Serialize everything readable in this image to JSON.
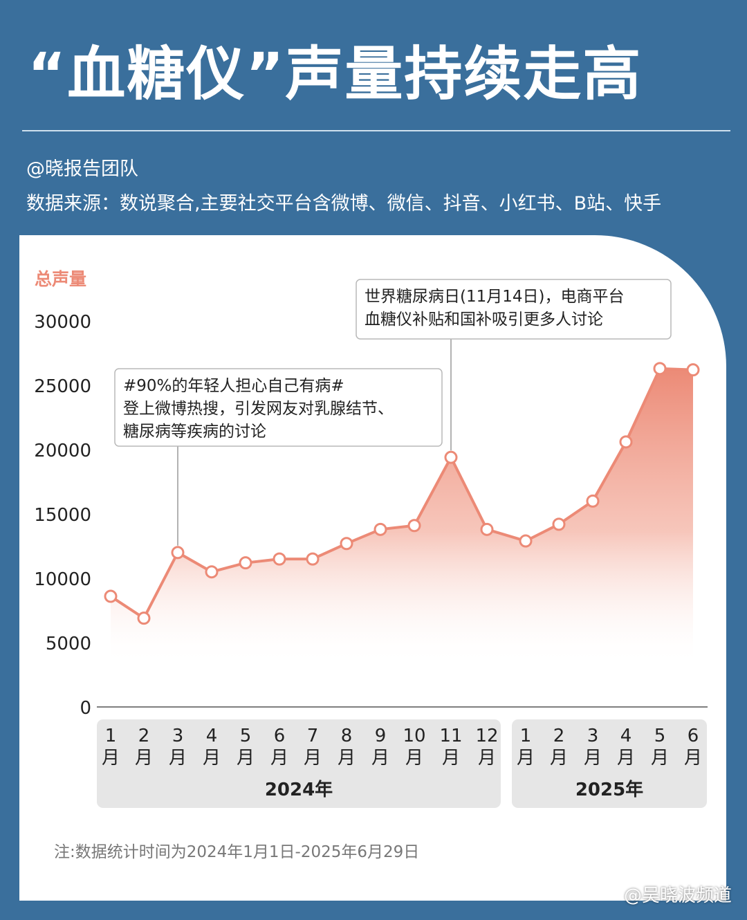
{
  "header": {
    "title": "“血糖仪”声量持续走高",
    "author": "@晓报告团队",
    "source": "数据来源：数说聚合,主要社交平台含微博、微信、抖音、小红书、B站、快手"
  },
  "footer": {
    "note": "注:数据统计时间为2024年1月1日-2025年6月29日",
    "watermark": "@吴晓波频道"
  },
  "colors": {
    "frame": "#3a6f9c",
    "line": "#ec8a76",
    "area_top": "#ec8a76",
    "year_band": "#e6e6e6"
  },
  "chart_data": {
    "type": "area",
    "ylabel": "总声量",
    "ylim": [
      0,
      30000
    ],
    "yticks": [
      "30000",
      "25000",
      "20000",
      "15000",
      "10000",
      "5000",
      "0"
    ],
    "categories": [
      "1月",
      "2月",
      "3月",
      "4月",
      "5月",
      "6月",
      "7月",
      "8月",
      "9月",
      "10月",
      "11月",
      "12月",
      "1月",
      "2月",
      "3月",
      "4月",
      "5月",
      "6月"
    ],
    "month_numbers": [
      "1",
      "2",
      "3",
      "4",
      "5",
      "6",
      "7",
      "8",
      "9",
      "10",
      "11",
      "12",
      "1",
      "2",
      "3",
      "4",
      "5",
      "6"
    ],
    "month_suffix": "月",
    "years": [
      {
        "label": "2024年",
        "from": 0,
        "to": 11
      },
      {
        "label": "2025年",
        "from": 12,
        "to": 17
      }
    ],
    "values": [
      8600,
      6900,
      12000,
      10500,
      11200,
      11500,
      11500,
      12700,
      13800,
      14100,
      19400,
      13800,
      12900,
      14200,
      16000,
      20600,
      26300,
      26200
    ],
    "annotations": [
      {
        "index": 2,
        "lines": [
          "#90%的年轻人担心自己有病#",
          "登上微博热搜，引发网友对乳腺结节、",
          "糖尿病等疾病的讨论"
        ]
      },
      {
        "index": 10,
        "lines": [
          "世界糖尿病日(11月14日)，电商平台",
          "血糖仪补贴和国补吸引更多人讨论"
        ]
      }
    ]
  }
}
